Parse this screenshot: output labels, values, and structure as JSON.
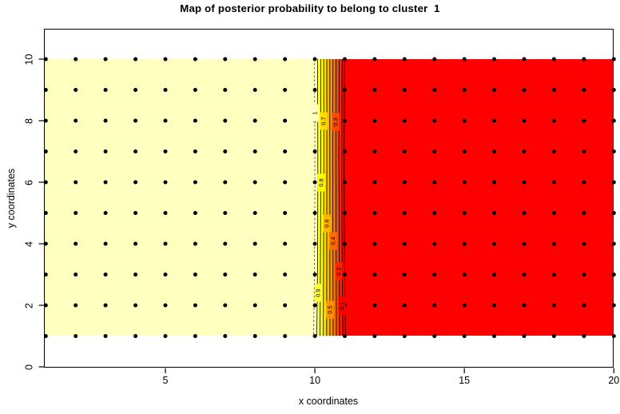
{
  "chart_data": {
    "type": "filled-contour",
    "title": "Map of posterior probability to belong to cluster  1",
    "xlabel": "x coordinates",
    "ylabel": "y coordinates",
    "x_ticks": [
      5,
      10,
      15,
      20
    ],
    "y_ticks": [
      0,
      2,
      4,
      6,
      8,
      10
    ],
    "xlim": [
      0.95,
      20
    ],
    "ylim": [
      0,
      11
    ],
    "legend_position": "none",
    "grid_points": {
      "x_from": 1,
      "x_to": 20,
      "y_from": 1,
      "y_to": 10,
      "step": 1,
      "marker": "filled-circle",
      "color": "#000000"
    },
    "field_description": "posterior probability of cluster 1: ~1 for x <= 10 (pale cream region), ~0 for x >= 11 (red region), sharp linear transition between x=10 and x=11 across full y range 1..10",
    "region_colors": {
      "high_probability": "#FFFFBF",
      "low_probability": "#FF0000"
    },
    "palette_heat_colors": [
      "#FFFFBF",
      "#FFFF40",
      "#FFFF00",
      "#FFDB00",
      "#FFB600",
      "#FF9200",
      "#FF6D00",
      "#FF4900",
      "#FF2400",
      "#FF0000"
    ],
    "transition": {
      "x_from": 10,
      "x_to": 11
    },
    "contour_lines": [
      {
        "level": 1,
        "x": 10.0,
        "style": "dashed",
        "label": "1",
        "label_y": 8.25
      },
      {
        "level": 0.9,
        "x": 10.1,
        "style": "solid",
        "label": "0.9",
        "label_y": 2.4
      },
      {
        "level": 0.8,
        "x": 10.2,
        "style": "solid",
        "label": "0.8",
        "label_y": 6.0
      },
      {
        "level": 0.7,
        "x": 10.3,
        "style": "solid",
        "label": "0.7",
        "label_y": 8.0
      },
      {
        "level": 0.6,
        "x": 10.4,
        "style": "solid",
        "label": "0.6",
        "label_y": 4.65
      },
      {
        "level": 0.5,
        "x": 10.5,
        "style": "solid",
        "label": "0.5",
        "label_y": 1.85
      },
      {
        "level": 0.4,
        "x": 10.6,
        "style": "solid",
        "label": "0.4",
        "label_y": 4.1
      },
      {
        "level": 0.3,
        "x": 10.7,
        "style": "solid",
        "label": "0.3",
        "label_y": 7.95
      },
      {
        "level": 0.2,
        "x": 10.8,
        "style": "solid",
        "label": "0.2",
        "label_y": 3.1
      },
      {
        "level": 0.1,
        "x": 10.9,
        "style": "solid",
        "label": "0.1",
        "label_y": 2.0
      },
      {
        "level": 0.02,
        "x": 10.98,
        "style": "solid",
        "label": "",
        "label_y": null
      }
    ]
  }
}
